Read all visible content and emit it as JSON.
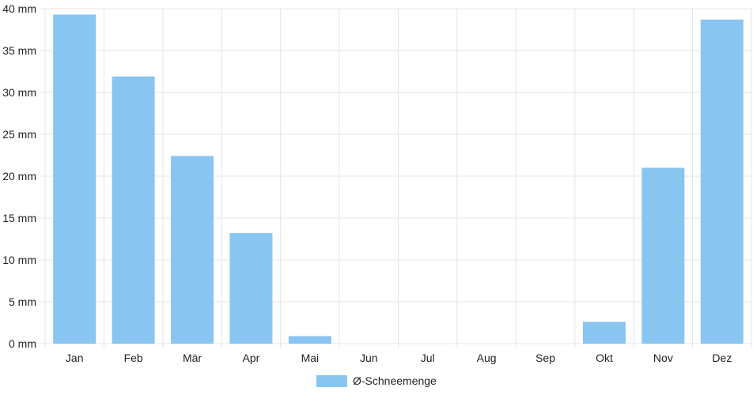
{
  "chart_data": {
    "type": "bar",
    "categories": [
      "Jan",
      "Feb",
      "Mär",
      "Apr",
      "Mai",
      "Jun",
      "Jul",
      "Aug",
      "Sep",
      "Okt",
      "Nov",
      "Dez"
    ],
    "series": [
      {
        "name": "Ø-Schneemenge",
        "values": [
          39.3,
          31.9,
          22.4,
          13.2,
          0.9,
          0,
          0,
          0,
          0,
          2.6,
          21.0,
          38.7
        ],
        "color": "#88c5f1"
      }
    ],
    "y_ticks": [
      "0 mm",
      "5 mm",
      "10 mm",
      "15 mm",
      "20 mm",
      "25 mm",
      "30 mm",
      "35 mm",
      "40 mm"
    ],
    "ylim": [
      0,
      40
    ],
    "unit": "mm",
    "grid": true,
    "legend_position": "bottom",
    "grid_color": "#e5e5e5",
    "text_color": "#222222"
  }
}
